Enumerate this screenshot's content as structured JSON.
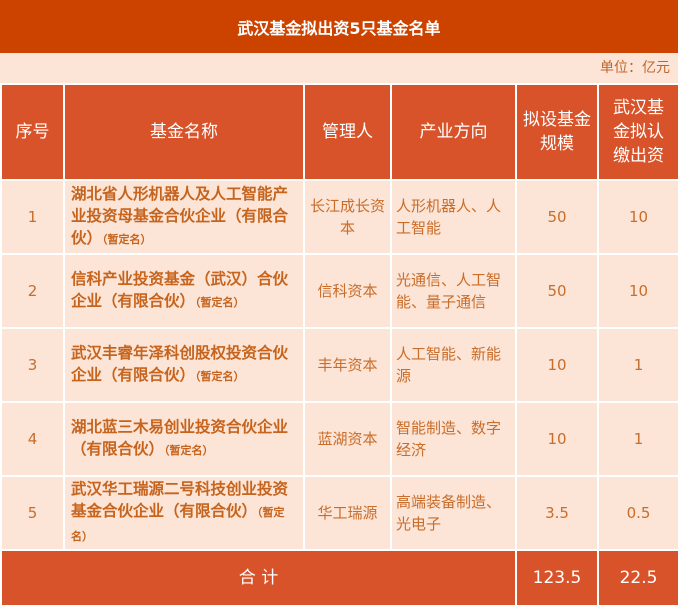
{
  "title": "武汉基金拟出资5只基金名单",
  "unit": "单位：亿元",
  "headers": [
    "序号",
    "基金名称",
    "管理人",
    "产业方向",
    "拟设基金规模",
    "武汉基金拟认缴出资"
  ],
  "rows": [
    {
      "no": "1",
      "name": "湖北省人形机器人及人工智能产业投资母基金合伙企业（有限合伙）",
      "note": "（暂定名）",
      "manager": "长江成长资本",
      "direction": "人形机器人、人工智能",
      "scale": "50",
      "contribution": "10"
    },
    {
      "no": "2",
      "name": "信科产业投资基金（武汉）合伙企业（有限合伙）",
      "note": "（暂定名）",
      "manager": "信科资本",
      "direction": "光通信、人工智能、量子通信",
      "scale": "50",
      "contribution": "10"
    },
    {
      "no": "3",
      "name": "武汉丰睿年泽科创股权投资合伙企业（有限合伙）",
      "note": "（暂定名）",
      "manager": "丰年资本",
      "direction": "人工智能、新能源",
      "scale": "10",
      "contribution": "1"
    },
    {
      "no": "4",
      "name": "湖北蓝三木易创业投资合伙企业（有限合伙）",
      "note": "（暂定名）",
      "manager": "蓝湖资本",
      "direction": "智能制造、数字经济",
      "scale": "10",
      "contribution": "1"
    },
    {
      "no": "5",
      "name": "武汉华工瑞源二号科技创业投资基金合伙企业（有限合伙）",
      "note": "（暂定名）",
      "manager": "华工瑞源",
      "direction": "高端装备制造、光电子",
      "scale": "3.5",
      "contribution": "0.5"
    }
  ],
  "total": {
    "label": "合 计",
    "scale": "123.5",
    "contribution": "22.5"
  }
}
